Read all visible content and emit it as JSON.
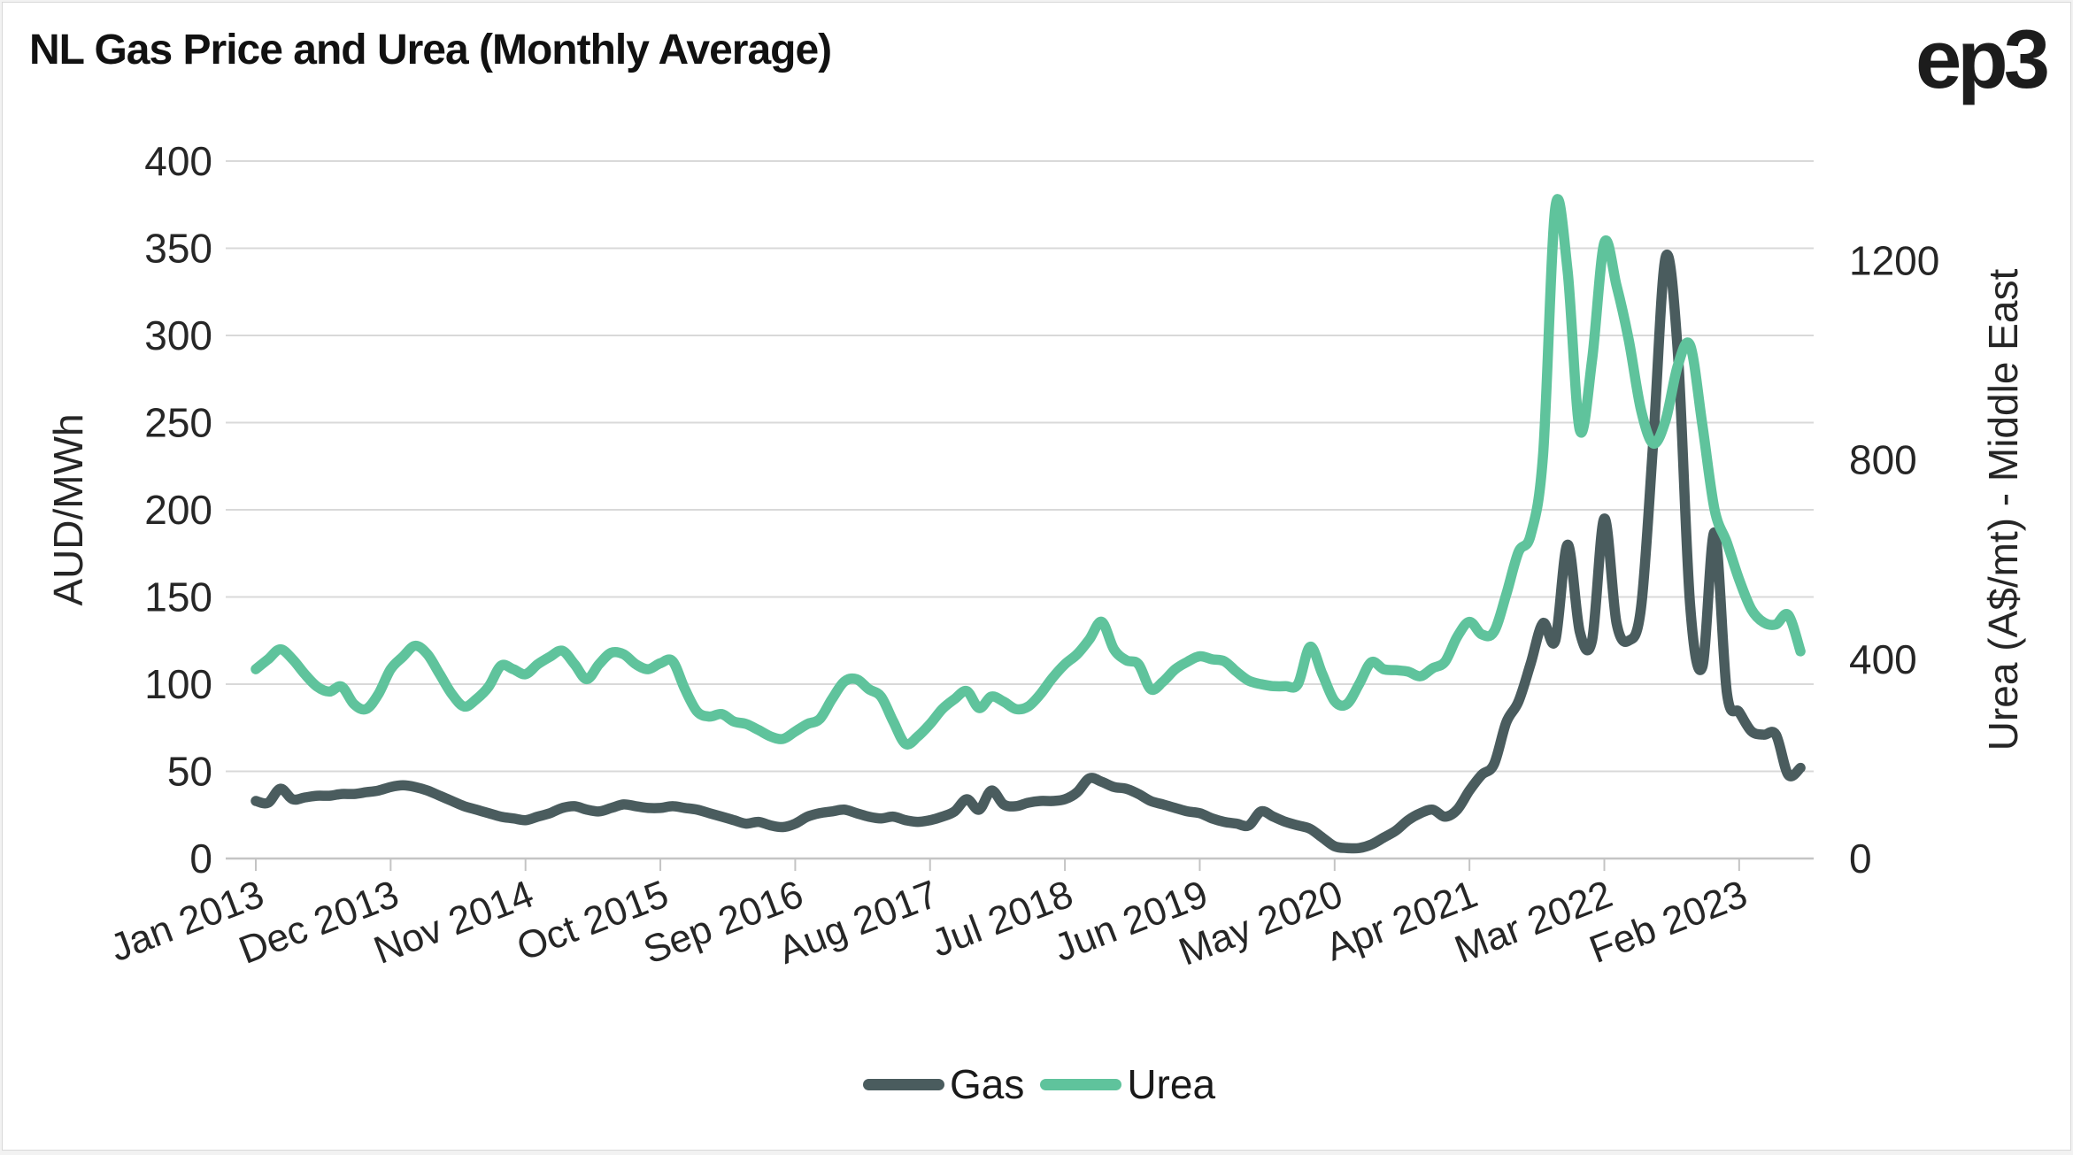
{
  "title": "NL Gas Price and Urea (Monthly Average)",
  "logo": "ep3",
  "colors": {
    "gas": "#4a5c5e",
    "urea": "#5fc39c",
    "gridline": "#d9d9d9",
    "axis_line": "#c4c4c4",
    "text": "#262626",
    "title_text": "#111111"
  },
  "chart_data": {
    "type": "line",
    "title": "NL Gas Price and Urea (Monthly Average)",
    "grid": "horizontal",
    "left_axis": {
      "label": "AUD/MWh",
      "range": [
        0,
        400
      ],
      "tick_values": [
        0,
        50,
        100,
        150,
        200,
        250,
        300,
        350,
        400
      ]
    },
    "right_axis": {
      "label": "Urea (A$/mt) - Middle East",
      "range": [
        0,
        1400
      ],
      "tick_values": [
        0,
        400,
        800,
        1200
      ]
    },
    "x_axis": {
      "start_month": "Jan 2013",
      "tick_labels": [
        "Jan 2013",
        "Dec 2013",
        "Nov 2014",
        "Oct 2015",
        "Sep 2016",
        "Aug 2017",
        "Jul 2018",
        "Jun 2019",
        "May 2020",
        "Apr 2021",
        "Mar 2022",
        "Feb 2023"
      ],
      "tick_month_indices": [
        0,
        11,
        22,
        33,
        44,
        55,
        66,
        77,
        88,
        99,
        110,
        121
      ]
    },
    "legend": {
      "position": "bottom-center",
      "entries": [
        "Gas",
        "Urea"
      ]
    },
    "series": [
      {
        "name": "Gas",
        "axis": "left",
        "unit": "AUD/MWh",
        "color": "#4a5c5e",
        "values": [
          33,
          32,
          40,
          34,
          35,
          36,
          36,
          37,
          37,
          38,
          39,
          41,
          42,
          41,
          39,
          36,
          33,
          30,
          28,
          26,
          24,
          23,
          22,
          24,
          26,
          29,
          30,
          28,
          27,
          29,
          31,
          30,
          29,
          29,
          30,
          29,
          28,
          26,
          24,
          22,
          20,
          21,
          19,
          18,
          20,
          24,
          26,
          27,
          28,
          26,
          24,
          23,
          24,
          22,
          21,
          22,
          24,
          27,
          34,
          28,
          39,
          31,
          30,
          32,
          33,
          33,
          34,
          38,
          46,
          44,
          41,
          40,
          37,
          33,
          31,
          29,
          27,
          26,
          23,
          21,
          20,
          19,
          27,
          24,
          21,
          19,
          17,
          12,
          7,
          6,
          6,
          8,
          12,
          16,
          22,
          26,
          28,
          24,
          28,
          39,
          48,
          54,
          78,
          90,
          112,
          135,
          125,
          180,
          130,
          125,
          195,
          135,
          125,
          144,
          240,
          345,
          290,
          145,
          110,
          187,
          95,
          84,
          73,
          71,
          71,
          48,
          52
        ]
      },
      {
        "name": "Urea",
        "axis": "right",
        "unit": "A$/mt",
        "color": "#5fc39c",
        "values": [
          380,
          400,
          420,
          400,
          370,
          345,
          335,
          345,
          310,
          300,
          330,
          380,
          405,
          427,
          410,
          370,
          330,
          305,
          320,
          345,
          387,
          380,
          370,
          390,
          405,
          417,
          390,
          360,
          390,
          413,
          410,
          390,
          380,
          392,
          396,
          340,
          295,
          285,
          290,
          275,
          270,
          258,
          245,
          240,
          255,
          270,
          280,
          320,
          355,
          360,
          340,
          325,
          275,
          230,
          245,
          270,
          300,
          320,
          336,
          302,
          325,
          315,
          300,
          305,
          330,
          363,
          390,
          410,
          440,
          475,
          420,
          398,
          390,
          340,
          355,
          380,
          395,
          406,
          400,
          396,
          375,
          357,
          350,
          346,
          346,
          350,
          425,
          370,
          316,
          310,
          350,
          394,
          380,
          378,
          375,
          366,
          382,
          395,
          445,
          475,
          450,
          455,
          530,
          615,
          650,
          810,
          1306,
          1180,
          860,
          1000,
          1236,
          1150,
          1040,
          900,
          833,
          880,
          990,
          1030,
          870,
          700,
          634,
          560,
          500,
          474,
          470,
          489,
          416
        ]
      }
    ]
  }
}
